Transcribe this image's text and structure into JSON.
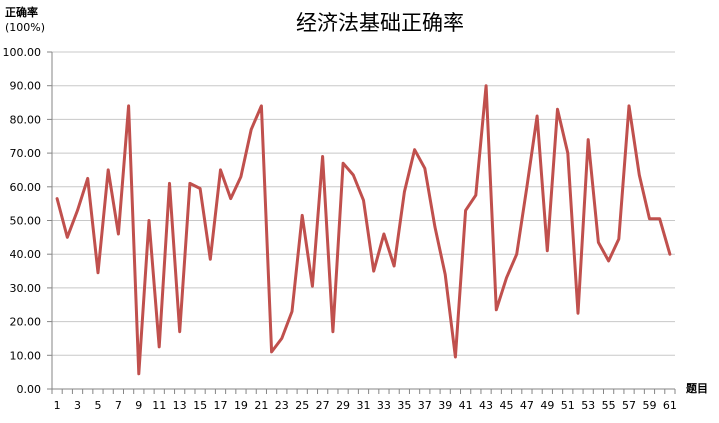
{
  "chart_data": {
    "type": "line",
    "title": "经济法基础正确率",
    "ylabel": "正确率",
    "ylabel_unit": "(100%)",
    "xlabel": "题目",
    "ylim": [
      0,
      100
    ],
    "yticks": [
      "0.00",
      "10.00",
      "20.00",
      "30.00",
      "40.00",
      "50.00",
      "60.00",
      "70.00",
      "80.00",
      "90.00",
      "100.00"
    ],
    "xticks": [
      "1",
      "3",
      "5",
      "7",
      "9",
      "11",
      "13",
      "15",
      "17",
      "19",
      "21",
      "23",
      "25",
      "27",
      "29",
      "31",
      "33",
      "35",
      "37",
      "39",
      "41",
      "43",
      "45",
      "47",
      "49",
      "51",
      "53",
      "55",
      "57",
      "59",
      "61"
    ],
    "grid": true,
    "legend": "none",
    "line_color": "#c0504d",
    "x": [
      1,
      2,
      3,
      4,
      5,
      6,
      7,
      8,
      9,
      10,
      11,
      12,
      13,
      14,
      15,
      16,
      17,
      18,
      19,
      20,
      21,
      22,
      23,
      24,
      25,
      26,
      27,
      28,
      29,
      30,
      31,
      32,
      33,
      34,
      35,
      36,
      37,
      38,
      39,
      40,
      41,
      42,
      43,
      44,
      45,
      46,
      47,
      48,
      49,
      50,
      51,
      52,
      53,
      54,
      55,
      56,
      57,
      58,
      59,
      60,
      61
    ],
    "values": [
      56.5,
      45,
      53,
      62.5,
      34.5,
      65,
      46,
      84,
      4.5,
      50,
      12.5,
      61,
      17,
      61,
      59.5,
      38.5,
      65,
      56.5,
      63,
      77,
      84,
      11,
      15,
      23,
      51.5,
      30.5,
      69,
      17,
      67,
      63.5,
      56,
      35,
      46,
      36.5,
      58.5,
      71,
      65.5,
      48,
      34,
      9.5,
      53,
      57.5,
      90,
      23.5,
      33,
      40,
      60,
      81,
      41,
      83,
      70,
      22.5,
      74,
      43.5,
      38,
      44.5,
      84,
      63.5,
      50.5,
      50.5,
      40
    ]
  }
}
